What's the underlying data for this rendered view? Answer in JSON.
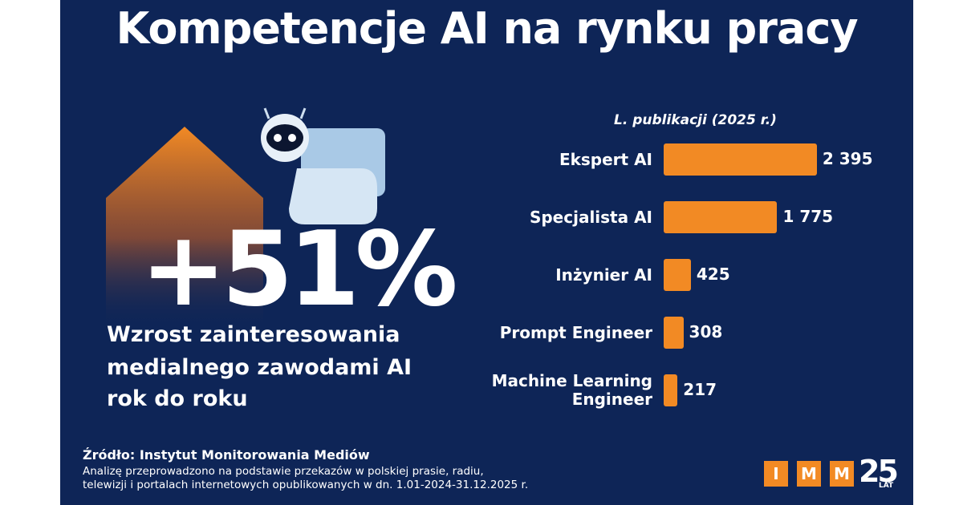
{
  "header": {
    "title": "Kompetencje AI na rynku pracy"
  },
  "highlight": {
    "value": "+51%",
    "caption_lines": [
      "Wzrost zainteresowania",
      "medialnego zawodami AI",
      "rok do roku"
    ]
  },
  "chart_data": {
    "type": "bar",
    "orientation": "horizontal",
    "axis_label": "L. publikacji (2025 r.)",
    "categories": [
      "Ekspert AI",
      "Specjalista AI",
      "Inżynier AI",
      "Prompt Engineer",
      "Machine Learning Engineer"
    ],
    "values": [
      2395,
      1775,
      425,
      308,
      217
    ],
    "value_labels": [
      "2 395",
      "1 775",
      "425",
      "308",
      "217"
    ],
    "color": "#f28a24"
  },
  "footer": {
    "source": "Źródło: Instytut Monitorowania Mediów",
    "note_lines": [
      "Analizę przeprowadzono na podstawie przekazów w polskiej prasie, radiu,",
      "telewizji i portalach internetowych opublikowanych w dn. 1.01-2024-31.12.2025 r."
    ]
  },
  "logo": {
    "letters": [
      "I",
      "M",
      "M"
    ],
    "years": "25",
    "years_label": "LAT"
  }
}
